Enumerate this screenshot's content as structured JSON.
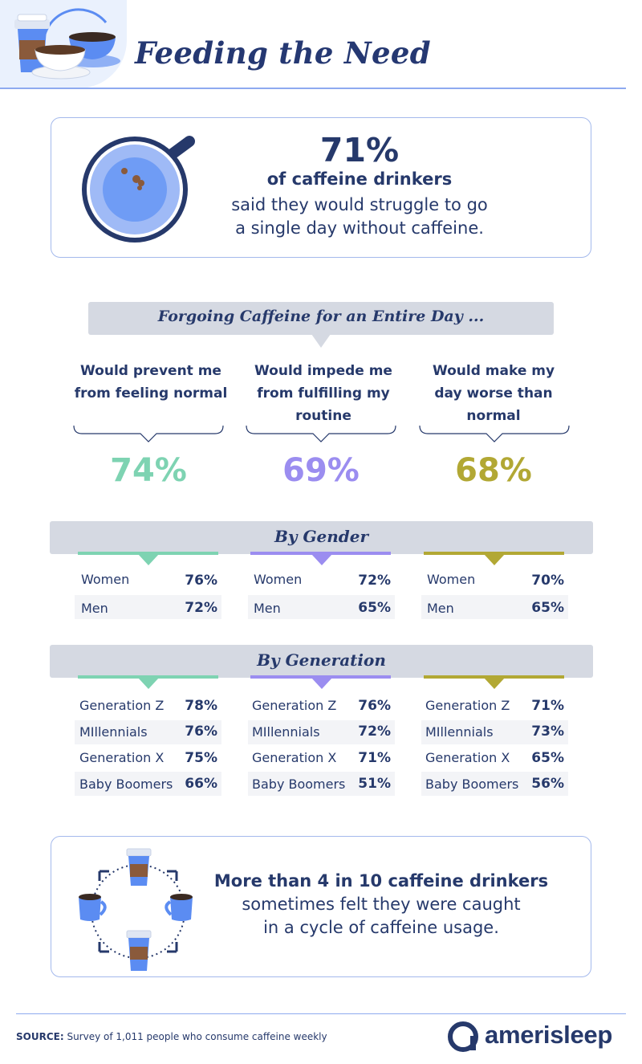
{
  "title": "Feeding the Need",
  "stat": {
    "percent": "71%",
    "subject": "of caffeine drinkers",
    "line1": "said they would struggle to go",
    "line2": "a single day without caffeine."
  },
  "banner": "Forgoing Caffeine for an Entire Day ...",
  "colors": {
    "green": "#7ed3b2",
    "purple": "#9b8df0",
    "olive": "#b2a834",
    "navy": "#26396b",
    "blue": "#6f9cf5"
  },
  "chart_data": [
    {
      "type": "table",
      "title": "Forgoing Caffeine for an Entire Day ...",
      "categories": [
        "Would prevent me from feeling normal",
        "Would impede me from fulfilling my routine",
        "Would make my day worse than normal"
      ],
      "values": [
        74,
        69,
        68
      ],
      "labels": [
        "74%",
        "69%",
        "68%"
      ],
      "columns": [
        {
          "head": [
            "Would prevent me",
            "from feeling normal"
          ]
        },
        {
          "head": [
            "Would impede me",
            "from fulfilling my",
            "routine"
          ]
        },
        {
          "head": [
            "Would make my",
            "day worse than",
            "normal"
          ]
        }
      ]
    },
    {
      "type": "table",
      "title": "By Gender",
      "categories": [
        "Women",
        "Men"
      ],
      "series": [
        {
          "name": "Would prevent me from feeling normal",
          "values": [
            "76%",
            "72%"
          ]
        },
        {
          "name": "Would impede me from fulfilling my routine",
          "values": [
            "72%",
            "65%"
          ]
        },
        {
          "name": "Would make my day worse than normal",
          "values": [
            "70%",
            "65%"
          ]
        }
      ]
    },
    {
      "type": "table",
      "title": "By Generation",
      "categories": [
        "Generation Z",
        "MIllennials",
        "Generation X",
        "Baby Boomers"
      ],
      "series": [
        {
          "name": "Would prevent me from feeling normal",
          "values": [
            "78%",
            "76%",
            "75%",
            "66%"
          ]
        },
        {
          "name": "Would impede me from fulfilling my routine",
          "values": [
            "76%",
            "72%",
            "71%",
            "51%"
          ]
        },
        {
          "name": "Would make my day worse than normal",
          "values": [
            "71%",
            "73%",
            "65%",
            "56%"
          ]
        }
      ]
    }
  ],
  "cycle": {
    "line1": "More than 4 in 10 caffeine drinkers",
    "line2": "sometimes felt they were caught",
    "line3": "in a cycle of caffeine usage."
  },
  "footer": {
    "source_label": "SOURCE:",
    "source_text": " Survey of 1,011 people who consume caffeine weekly",
    "brand": "amerisleep"
  }
}
